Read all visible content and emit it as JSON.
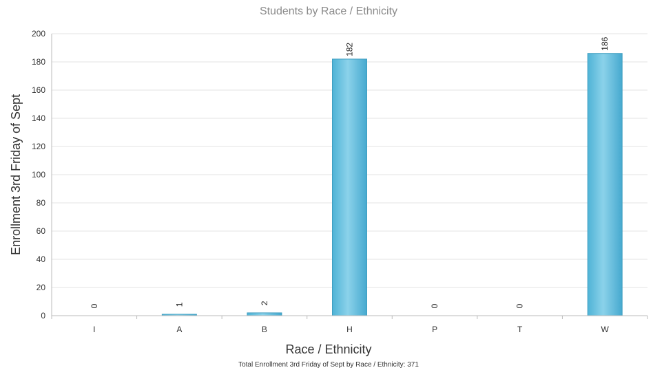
{
  "chart_data": {
    "type": "bar",
    "title": "Students by Race / Ethnicity",
    "xlabel": "Race / Ethnicity",
    "ylabel": "Enrollment 3rd Friday of Sept",
    "categories": [
      "I",
      "A",
      "B",
      "H",
      "P",
      "T",
      "W"
    ],
    "values": [
      0,
      1,
      2,
      182,
      0,
      0,
      186
    ],
    "ylim": [
      0,
      200
    ],
    "yticks": [
      0,
      20,
      40,
      60,
      80,
      100,
      120,
      140,
      160,
      180,
      200
    ],
    "grid": true,
    "legend": "none",
    "bar_color": "#5bbcdc",
    "bar_edge_color": "#3f9ec0",
    "footnote": "Total Enrollment 3rd Friday of Sept by Race / Ethnicity: 371"
  }
}
